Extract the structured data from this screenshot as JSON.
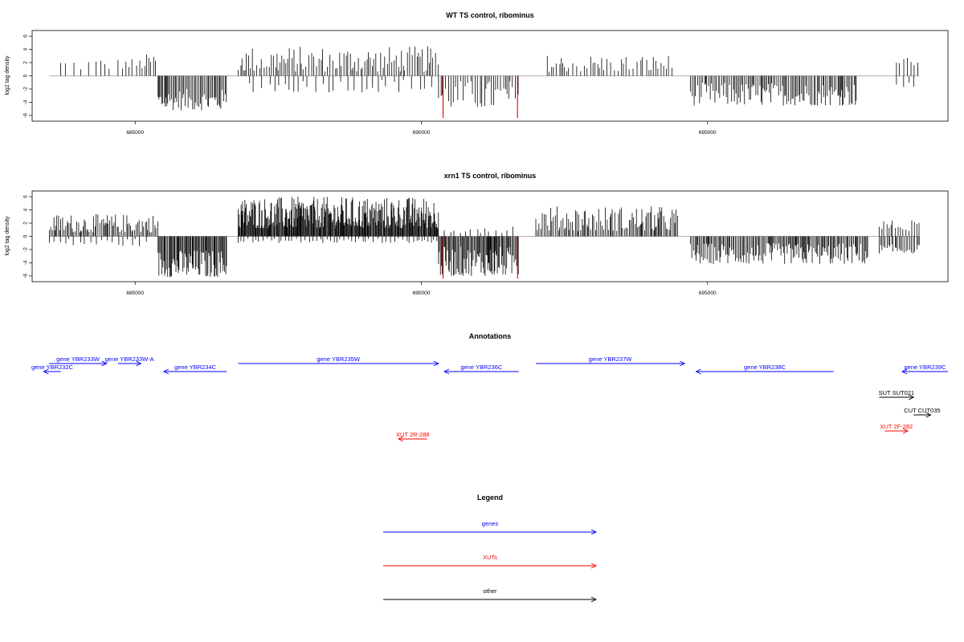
{
  "chart_data": [
    {
      "type": "bar",
      "title": "WT TS control, ribominus",
      "ylabel": "log2 tag density",
      "ylim": [
        -6.5,
        6.5
      ],
      "yticks": [
        -6,
        -4,
        -2,
        0,
        2,
        4,
        6
      ],
      "xlim": [
        683200,
        699200
      ],
      "xticks": [
        685000,
        690000,
        695000
      ],
      "baseline": [
        683500,
        698700
      ],
      "segments": [
        {
          "strand": "+",
          "from": 683700,
          "to": 684600,
          "min": 0.8,
          "max": 2.8,
          "step": 100
        },
        {
          "strand": "+",
          "from": 684700,
          "to": 685200,
          "min": 1.0,
          "max": 2.7,
          "step": 60
        },
        {
          "strand": "+",
          "from": 685200,
          "to": 685400,
          "min": 1.5,
          "max": 3.3,
          "step": 40
        },
        {
          "strand": "-",
          "from": 685400,
          "to": 686600,
          "min": -5.2,
          "max": -2.0,
          "step": 22
        },
        {
          "strand": "+",
          "from": 686800,
          "to": 690300,
          "min": 0.6,
          "max": 4.5,
          "step": 35
        },
        {
          "strand": "-",
          "from": 687000,
          "to": 690200,
          "min": -2.5,
          "max": -0.4,
          "step": 110
        },
        {
          "strand": "-",
          "from": 690300,
          "to": 691700,
          "min": -5.0,
          "max": -0.6,
          "step": 40
        },
        {
          "strand": "+",
          "from": 692200,
          "to": 694400,
          "min": 0.6,
          "max": 3.2,
          "step": 50
        },
        {
          "strand": "-",
          "from": 694700,
          "to": 697600,
          "min": -4.5,
          "max": -1.0,
          "step": 26
        },
        {
          "strand": "+",
          "from": 698300,
          "to": 698700,
          "min": 1.5,
          "max": 2.8,
          "step": 70
        },
        {
          "strand": "-",
          "from": 698300,
          "to": 698700,
          "min": -1.8,
          "max": -1.0,
          "step": 90
        }
      ],
      "highlight_bars": [
        {
          "x": 690380,
          "y": -6.4
        },
        {
          "x": 691680,
          "y": -6.4
        }
      ]
    },
    {
      "type": "bar",
      "title": "xrn1 TS control, ribominus",
      "ylabel": "log2 tag density",
      "ylim": [
        -6.5,
        6.5
      ],
      "yticks": [
        -6,
        -4,
        -2,
        0,
        2,
        4,
        6
      ],
      "xlim": [
        683200,
        699200
      ],
      "xticks": [
        685000,
        690000,
        695000
      ],
      "baseline": [
        683500,
        698700
      ],
      "segments": [
        {
          "strand": "+",
          "from": 683500,
          "to": 685400,
          "min": 0.6,
          "max": 3.4,
          "step": 24
        },
        {
          "strand": "-",
          "from": 683500,
          "to": 685300,
          "min": -1.5,
          "max": -0.3,
          "step": 90
        },
        {
          "strand": "-",
          "from": 685400,
          "to": 686600,
          "min": -6.2,
          "max": -2.0,
          "step": 16
        },
        {
          "strand": "+",
          "from": 686800,
          "to": 690300,
          "min": 1.2,
          "max": 6.0,
          "step": 12
        },
        {
          "strand": "-",
          "from": 686800,
          "to": 690300,
          "min": -1.0,
          "max": -0.3,
          "step": 60
        },
        {
          "strand": "-",
          "from": 690300,
          "to": 691700,
          "min": -6.0,
          "max": -1.5,
          "step": 16
        },
        {
          "strand": "+",
          "from": 690400,
          "to": 691700,
          "min": 0.5,
          "max": 1.8,
          "step": 90
        },
        {
          "strand": "+",
          "from": 692000,
          "to": 694500,
          "min": 0.8,
          "max": 4.6,
          "step": 24
        },
        {
          "strand": "-",
          "from": 694700,
          "to": 697800,
          "min": -4.2,
          "max": -1.0,
          "step": 20
        },
        {
          "strand": "+",
          "from": 698000,
          "to": 698700,
          "min": 0.8,
          "max": 2.5,
          "step": 40
        },
        {
          "strand": "-",
          "from": 698000,
          "to": 698700,
          "min": -2.6,
          "max": -1.2,
          "step": 30
        }
      ],
      "highlight_bars": [
        {
          "x": 690380,
          "y": -6.4
        },
        {
          "x": 691680,
          "y": -6.4
        }
      ]
    }
  ],
  "annotations": {
    "title": "Annotations",
    "xlim": [
      683200,
      699200
    ],
    "features": [
      {
        "label": "gene YBR232C",
        "from": 683400,
        "to": 683700,
        "row": 1,
        "dir": "left",
        "cls": "genes"
      },
      {
        "label": "gene YBR233W",
        "from": 683500,
        "to": 684500,
        "row": 0,
        "dir": "right",
        "cls": "genes"
      },
      {
        "label": "gene YBR233W-A",
        "from": 684700,
        "to": 685100,
        "row": 0,
        "dir": "right",
        "cls": "genes"
      },
      {
        "label": "gene YBR234C",
        "from": 685500,
        "to": 686600,
        "row": 1,
        "dir": "left",
        "cls": "genes"
      },
      {
        "label": "gene YBR235W",
        "from": 686800,
        "to": 690300,
        "row": 0,
        "dir": "right",
        "cls": "genes"
      },
      {
        "label": "gene YBR236C",
        "from": 690400,
        "to": 691700,
        "row": 1,
        "dir": "left",
        "cls": "genes"
      },
      {
        "label": "gene YBR237W",
        "from": 692000,
        "to": 694600,
        "row": 0,
        "dir": "right",
        "cls": "genes"
      },
      {
        "label": "gene YBR238C",
        "from": 694800,
        "to": 697200,
        "row": 1,
        "dir": "left",
        "cls": "genes"
      },
      {
        "label": "gene YBR239C",
        "from": 698400,
        "to": 699200,
        "row": 1,
        "dir": "left",
        "cls": "genes"
      },
      {
        "label": "SUT SUT021",
        "from": 698000,
        "to": 698600,
        "row": 3,
        "dir": "right",
        "cls": "other"
      },
      {
        "label": "CUT CUT035",
        "from": 698600,
        "to": 698900,
        "row": 4,
        "dir": "right",
        "cls": "other"
      },
      {
        "label": "XUT 2F-282",
        "from": 698100,
        "to": 698500,
        "row": 5,
        "dir": "right",
        "cls": "xuts"
      },
      {
        "label": "XUT 2R-288",
        "from": 689600,
        "to": 690100,
        "row": 6,
        "dir": "left",
        "cls": "xuts"
      }
    ]
  },
  "legend": {
    "title": "Legend",
    "entries": [
      {
        "label": "genes",
        "cls": "genes"
      },
      {
        "label": "XUTs",
        "cls": "xuts"
      },
      {
        "label": "other",
        "cls": "other"
      }
    ]
  },
  "colors": {
    "genes": "#0000ff",
    "xuts": "#ff0000",
    "other": "#000000",
    "bars": "#000000",
    "baseline": "#9a9a9a",
    "highlight": "#e00000"
  }
}
